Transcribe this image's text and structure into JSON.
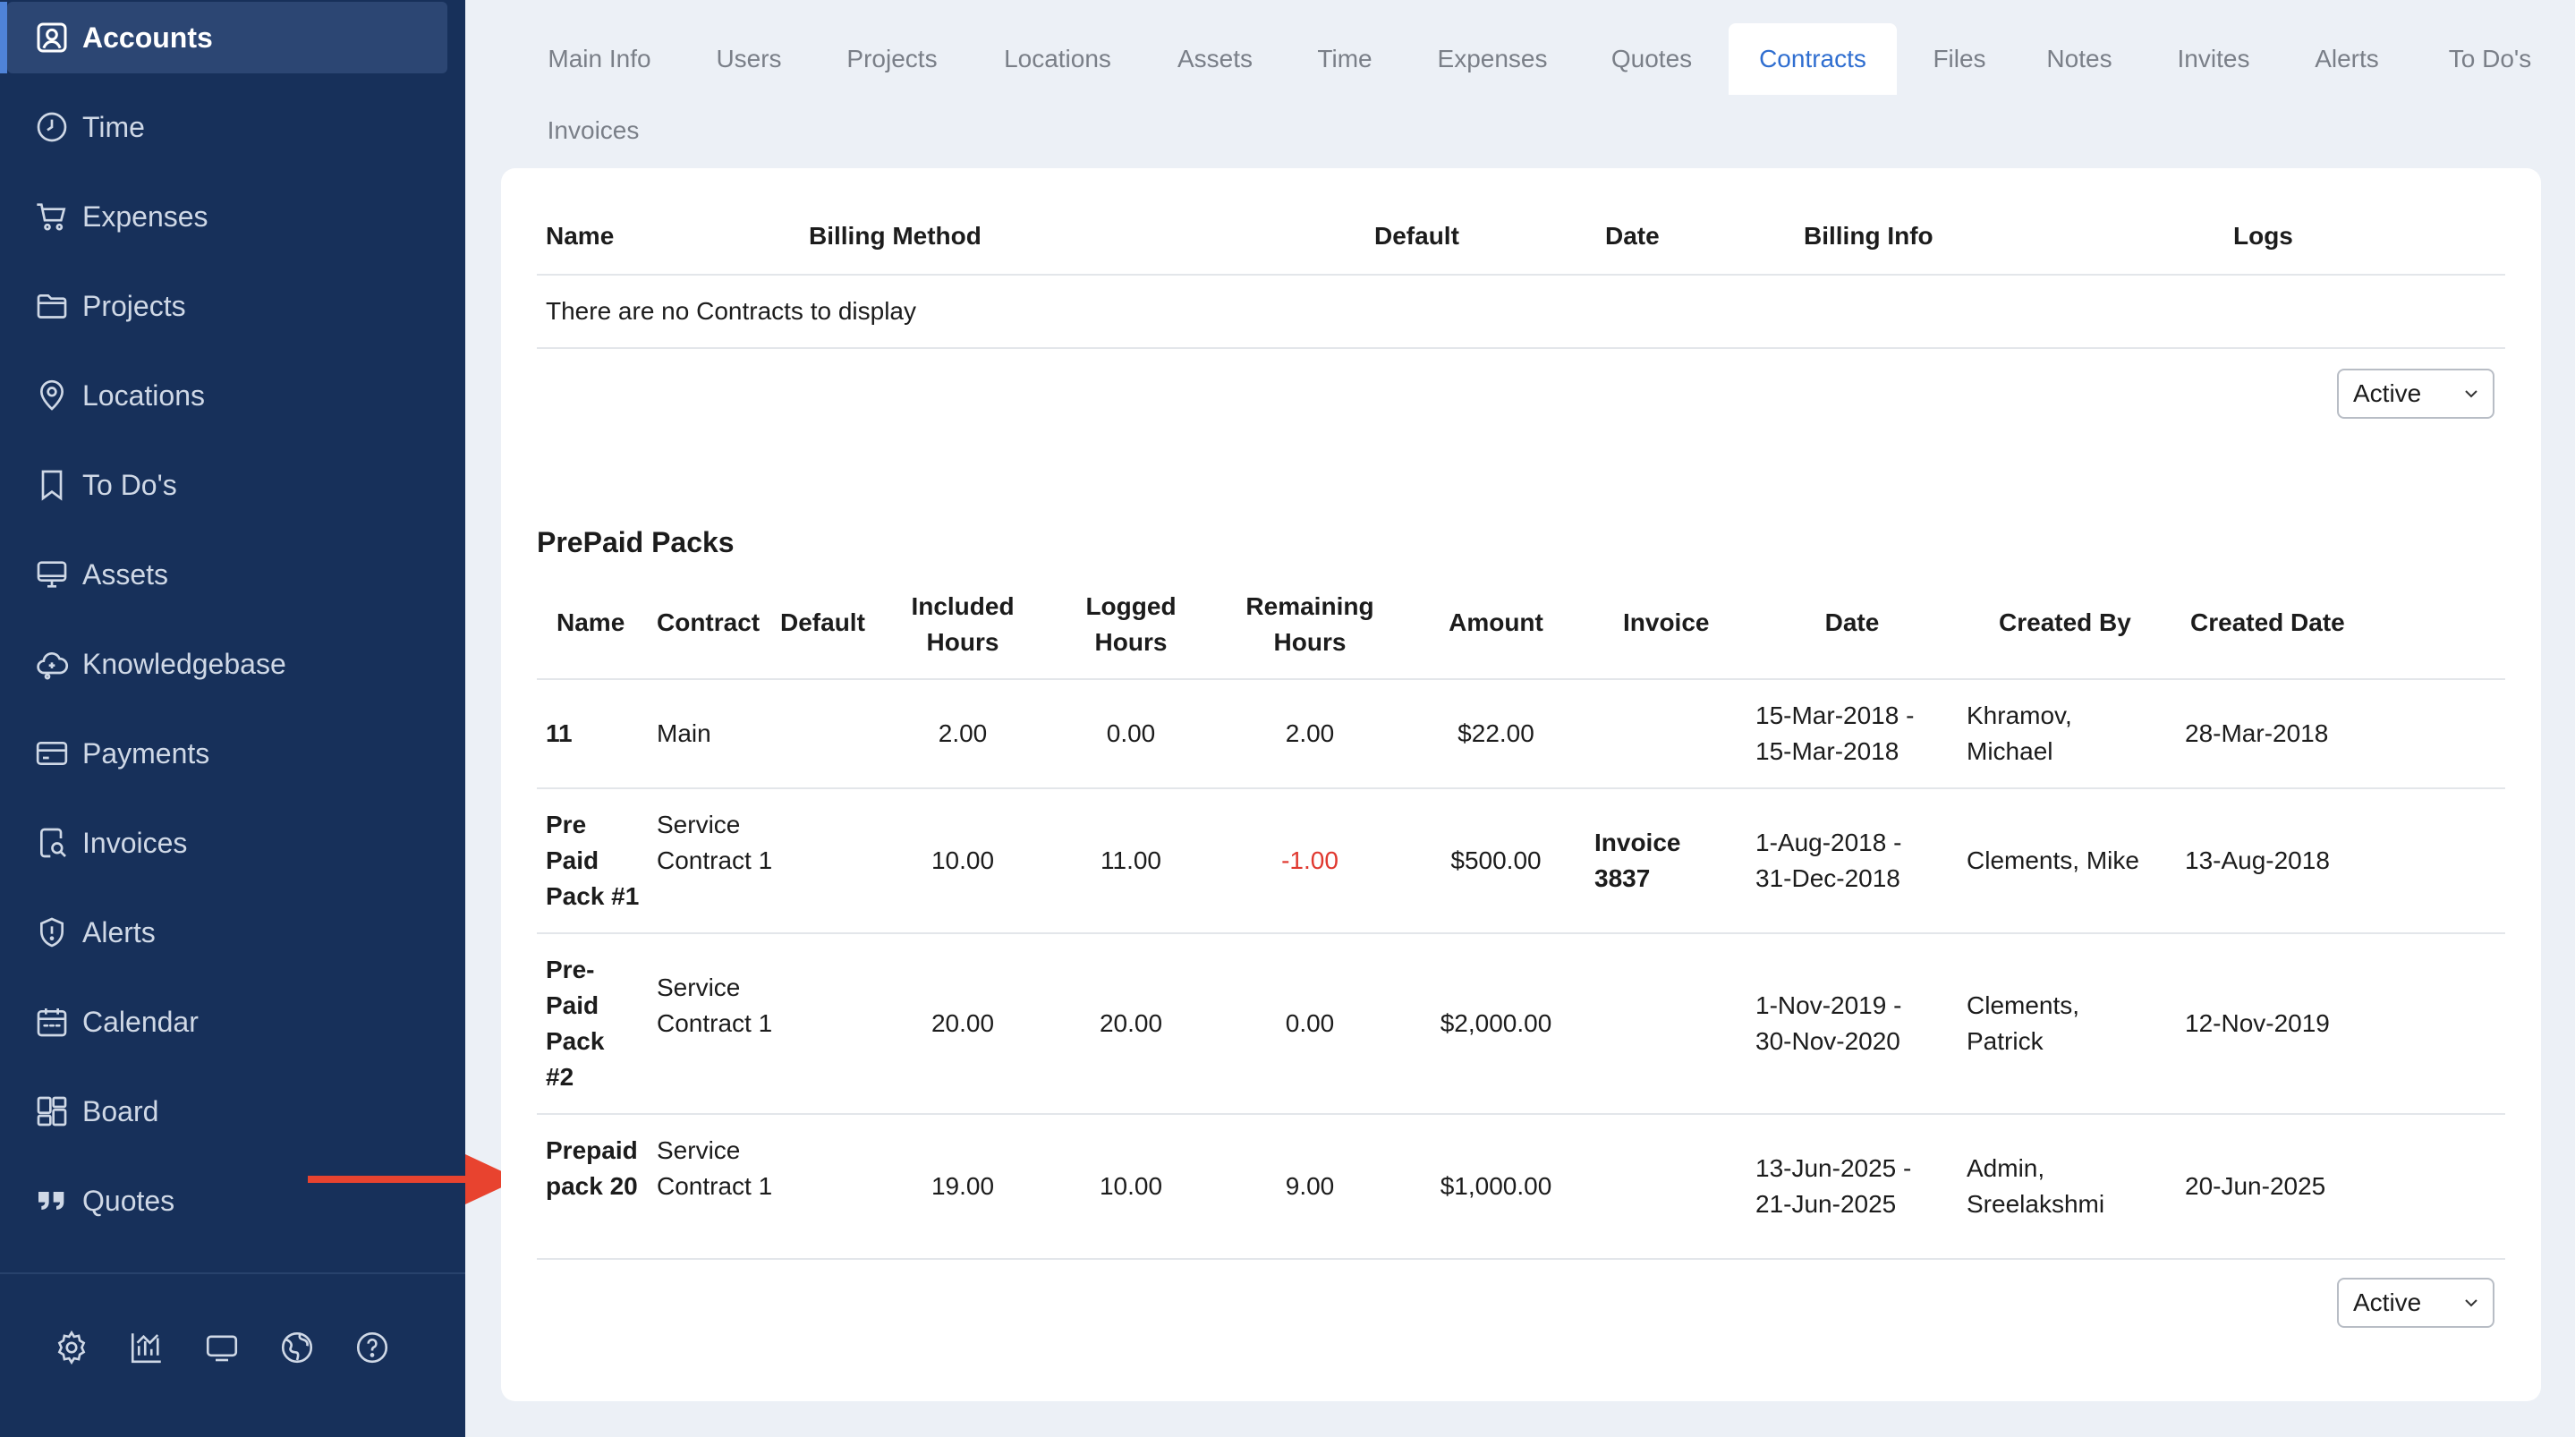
{
  "sidebar": {
    "items": [
      {
        "label": "Accounts",
        "icon": "accounts-icon"
      },
      {
        "label": "Time",
        "icon": "clock-icon"
      },
      {
        "label": "Expenses",
        "icon": "cart-icon"
      },
      {
        "label": "Projects",
        "icon": "folder-icon"
      },
      {
        "label": "Locations",
        "icon": "map-pin-icon"
      },
      {
        "label": "To Do's",
        "icon": "bookmark-icon"
      },
      {
        "label": "Assets",
        "icon": "monitor-icon"
      },
      {
        "label": "Knowledgebase",
        "icon": "knowledgebase-icon"
      },
      {
        "label": "Payments",
        "icon": "credit-card-icon"
      },
      {
        "label": "Invoices",
        "icon": "invoice-search-icon"
      },
      {
        "label": "Alerts",
        "icon": "shield-alert-icon"
      },
      {
        "label": "Calendar",
        "icon": "calendar-icon"
      },
      {
        "label": "Board",
        "icon": "board-icon"
      },
      {
        "label": "Quotes",
        "icon": "quote-icon"
      }
    ],
    "utility_icons": [
      "settings-icon",
      "reports-chart-icon",
      "screen-icon",
      "globe-icon",
      "help-icon"
    ]
  },
  "tabs": [
    "Main Info",
    "Users",
    "Projects",
    "Locations",
    "Assets",
    "Time",
    "Expenses",
    "Quotes",
    "Contracts",
    "Files",
    "Notes",
    "Invites",
    "Alerts",
    "To Do's",
    "Invoices"
  ],
  "active_tab": "Contracts",
  "contracts": {
    "headers": {
      "name": "Name",
      "billing_method": "Billing Method",
      "default": "Default",
      "date": "Date",
      "billing_info": "Billing Info",
      "logs": "Logs"
    },
    "empty_message": "There are no Contracts to display",
    "filter_value": "Active"
  },
  "prepaid": {
    "title": "PrePaid Packs",
    "headers": {
      "name": "Name",
      "contract": "Contract",
      "default": "Default",
      "included_hours": "Included Hours",
      "logged_hours": "Logged Hours",
      "remaining_hours": "Remaining Hours",
      "amount": "Amount",
      "invoice": "Invoice",
      "date": "Date",
      "created_by": "Created By",
      "created_date": "Created Date"
    },
    "rows": [
      {
        "name": "11",
        "contract": "Main",
        "included": "2.00",
        "logged": "0.00",
        "remaining": "2.00",
        "amount": "$22.00",
        "invoice": "",
        "date": "15-Mar-2018 - 15-Mar-2018",
        "created_by": "Khramov, Michael",
        "created_date": "28-Mar-2018"
      },
      {
        "name": "Pre Paid Pack #1",
        "contract": "Service Contract 1",
        "included": "10.00",
        "logged": "11.00",
        "remaining": "-1.00",
        "amount": "$500.00",
        "invoice": "Invoice 3837",
        "date": "1-Aug-2018 - 31-Dec-2018",
        "created_by": "Clements, Mike",
        "created_date": "13-Aug-2018"
      },
      {
        "name": "Pre-Paid Pack #2",
        "contract": "Service Contract 1",
        "included": "20.00",
        "logged": "20.00",
        "remaining": "0.00",
        "amount": "$2,000.00",
        "invoice": "",
        "date": "1-Nov-2019 - 30-Nov-2020",
        "created_by": "Clements, Patrick",
        "created_date": "12-Nov-2019"
      },
      {
        "name": "Prepaid pack 20",
        "contract": "Service Contract 1",
        "included": "19.00",
        "logged": "10.00",
        "remaining": "9.00",
        "amount": "$1,000.00",
        "invoice": "",
        "date": "13-Jun-2025 - 21-Jun-2025",
        "created_by": "Admin, Sreelakshmi",
        "created_date": "20-Jun-2025"
      }
    ],
    "filter_value": "Active"
  },
  "colors": {
    "sidebar_bg": "#17305a",
    "accent": "#2f6ed0",
    "negative": "#e0382f",
    "annotation_arrow": "#e8432f"
  }
}
